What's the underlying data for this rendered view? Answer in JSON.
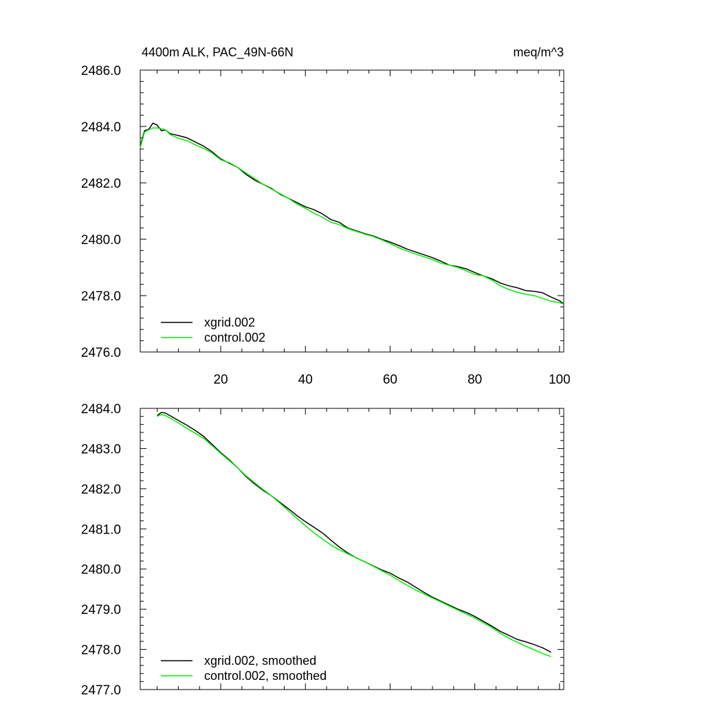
{
  "chart_data": [
    {
      "type": "line",
      "title": "4400m ALK, PAC_49N-66N",
      "units": "meq/m^3",
      "xlabel": "",
      "ylabel": "",
      "xlim": [
        1,
        101
      ],
      "ylim": [
        2476.0,
        2486.0
      ],
      "xticks": [
        20,
        40,
        60,
        80,
        100
      ],
      "xtick_labels": [
        "20",
        "40",
        "60",
        "80",
        "100"
      ],
      "yticks": [
        2476.0,
        2478.0,
        2480.0,
        2482.0,
        2484.0,
        2486.0
      ],
      "ytick_labels": [
        "2476.0",
        "2478.0",
        "2480.0",
        "2482.0",
        "2484.0",
        "2486.0"
      ],
      "grid": false,
      "legend_position": "bottom-left",
      "series": [
        {
          "name": "xgrid.002",
          "color": "#000000",
          "x": [
            1,
            2,
            3,
            4,
            5,
            6,
            7,
            8,
            10,
            12,
            14,
            16,
            18,
            20,
            22,
            24,
            26,
            28,
            30,
            32,
            34,
            36,
            38,
            40,
            42,
            44,
            46,
            48,
            50,
            52,
            54,
            56,
            58,
            60,
            62,
            64,
            66,
            68,
            70,
            72,
            74,
            76,
            78,
            80,
            82,
            84,
            86,
            88,
            90,
            92,
            94,
            96,
            98,
            100,
            101
          ],
          "y": [
            2483.3,
            2483.85,
            2483.9,
            2484.12,
            2484.05,
            2483.85,
            2483.88,
            2483.75,
            2483.68,
            2483.6,
            2483.45,
            2483.3,
            2483.1,
            2482.85,
            2482.7,
            2482.55,
            2482.3,
            2482.1,
            2481.95,
            2481.8,
            2481.6,
            2481.45,
            2481.3,
            2481.15,
            2481.05,
            2480.9,
            2480.7,
            2480.6,
            2480.4,
            2480.3,
            2480.2,
            2480.12,
            2480.0,
            2479.9,
            2479.78,
            2479.65,
            2479.55,
            2479.45,
            2479.35,
            2479.22,
            2479.08,
            2479.03,
            2478.95,
            2478.82,
            2478.7,
            2478.6,
            2478.45,
            2478.35,
            2478.28,
            2478.18,
            2478.15,
            2478.1,
            2477.95,
            2477.82,
            2477.7
          ]
        },
        {
          "name": "control.002",
          "color": "#00ee00",
          "x": [
            1,
            2,
            3,
            4,
            5,
            6,
            7,
            8,
            10,
            12,
            14,
            16,
            18,
            20,
            22,
            24,
            26,
            28,
            30,
            32,
            34,
            36,
            38,
            40,
            42,
            44,
            46,
            48,
            50,
            52,
            54,
            56,
            58,
            60,
            62,
            64,
            66,
            68,
            70,
            72,
            74,
            76,
            78,
            80,
            82,
            84,
            86,
            88,
            90,
            92,
            94,
            96,
            98,
            100,
            101
          ],
          "y": [
            2483.25,
            2483.8,
            2483.88,
            2483.95,
            2483.95,
            2483.92,
            2483.88,
            2483.72,
            2483.58,
            2483.5,
            2483.35,
            2483.22,
            2483.05,
            2482.82,
            2482.72,
            2482.55,
            2482.35,
            2482.15,
            2481.95,
            2481.78,
            2481.62,
            2481.45,
            2481.25,
            2481.1,
            2480.92,
            2480.78,
            2480.6,
            2480.52,
            2480.38,
            2480.28,
            2480.18,
            2480.1,
            2479.98,
            2479.85,
            2479.7,
            2479.58,
            2479.48,
            2479.38,
            2479.28,
            2479.15,
            2479.08,
            2479.0,
            2478.88,
            2478.75,
            2478.7,
            2478.55,
            2478.35,
            2478.22,
            2478.12,
            2478.05,
            2478.0,
            2477.9,
            2477.8,
            2477.75,
            2477.7
          ]
        }
      ]
    },
    {
      "type": "line",
      "title": "",
      "xlabel": "",
      "ylabel": "",
      "xlim": [
        1,
        101
      ],
      "ylim": [
        2477.0,
        2484.0
      ],
      "xticks": [
        20,
        40,
        60,
        80,
        100
      ],
      "xtick_labels": [],
      "yticks": [
        2477.0,
        2478.0,
        2479.0,
        2480.0,
        2481.0,
        2482.0,
        2483.0,
        2484.0
      ],
      "ytick_labels": [
        "2477.0",
        "2478.0",
        "2479.0",
        "2480.0",
        "2481.0",
        "2482.0",
        "2483.0",
        "2484.0"
      ],
      "grid": false,
      "legend_position": "bottom-left",
      "series": [
        {
          "name": "xgrid.002, smoothed",
          "color": "#000000",
          "x": [
            5,
            6,
            7,
            8,
            10,
            12,
            14,
            16,
            18,
            20,
            22,
            24,
            26,
            28,
            30,
            32,
            34,
            36,
            38,
            40,
            42,
            44,
            46,
            48,
            50,
            52,
            54,
            56,
            58,
            60,
            62,
            64,
            66,
            68,
            70,
            72,
            74,
            76,
            78,
            80,
            82,
            84,
            86,
            88,
            90,
            92,
            94,
            96,
            98
          ],
          "y": [
            2483.82,
            2483.9,
            2483.88,
            2483.82,
            2483.7,
            2483.58,
            2483.45,
            2483.3,
            2483.1,
            2482.9,
            2482.72,
            2482.52,
            2482.3,
            2482.12,
            2481.96,
            2481.82,
            2481.66,
            2481.5,
            2481.33,
            2481.18,
            2481.04,
            2480.9,
            2480.72,
            2480.55,
            2480.4,
            2480.28,
            2480.18,
            2480.08,
            2479.98,
            2479.9,
            2479.78,
            2479.68,
            2479.55,
            2479.42,
            2479.3,
            2479.2,
            2479.1,
            2479.0,
            2478.92,
            2478.82,
            2478.7,
            2478.58,
            2478.45,
            2478.35,
            2478.25,
            2478.19,
            2478.12,
            2478.04,
            2477.93
          ]
        },
        {
          "name": "control.002, smoothed",
          "color": "#00ee00",
          "x": [
            5,
            6,
            7,
            8,
            10,
            12,
            14,
            16,
            18,
            20,
            22,
            24,
            26,
            28,
            30,
            32,
            34,
            36,
            38,
            40,
            42,
            44,
            46,
            48,
            50,
            52,
            54,
            56,
            58,
            60,
            62,
            64,
            66,
            68,
            70,
            72,
            74,
            76,
            78,
            80,
            82,
            84,
            86,
            88,
            90,
            92,
            94,
            96,
            98
          ],
          "y": [
            2483.8,
            2483.85,
            2483.82,
            2483.76,
            2483.64,
            2483.5,
            2483.38,
            2483.25,
            2483.07,
            2482.88,
            2482.7,
            2482.52,
            2482.32,
            2482.15,
            2481.98,
            2481.82,
            2481.64,
            2481.45,
            2481.26,
            2481.08,
            2480.9,
            2480.75,
            2480.6,
            2480.48,
            2480.38,
            2480.28,
            2480.18,
            2480.07,
            2479.96,
            2479.85,
            2479.72,
            2479.6,
            2479.48,
            2479.38,
            2479.28,
            2479.18,
            2479.08,
            2478.98,
            2478.88,
            2478.78,
            2478.66,
            2478.55,
            2478.4,
            2478.28,
            2478.18,
            2478.08,
            2477.99,
            2477.9,
            2477.82
          ]
        }
      ]
    }
  ]
}
